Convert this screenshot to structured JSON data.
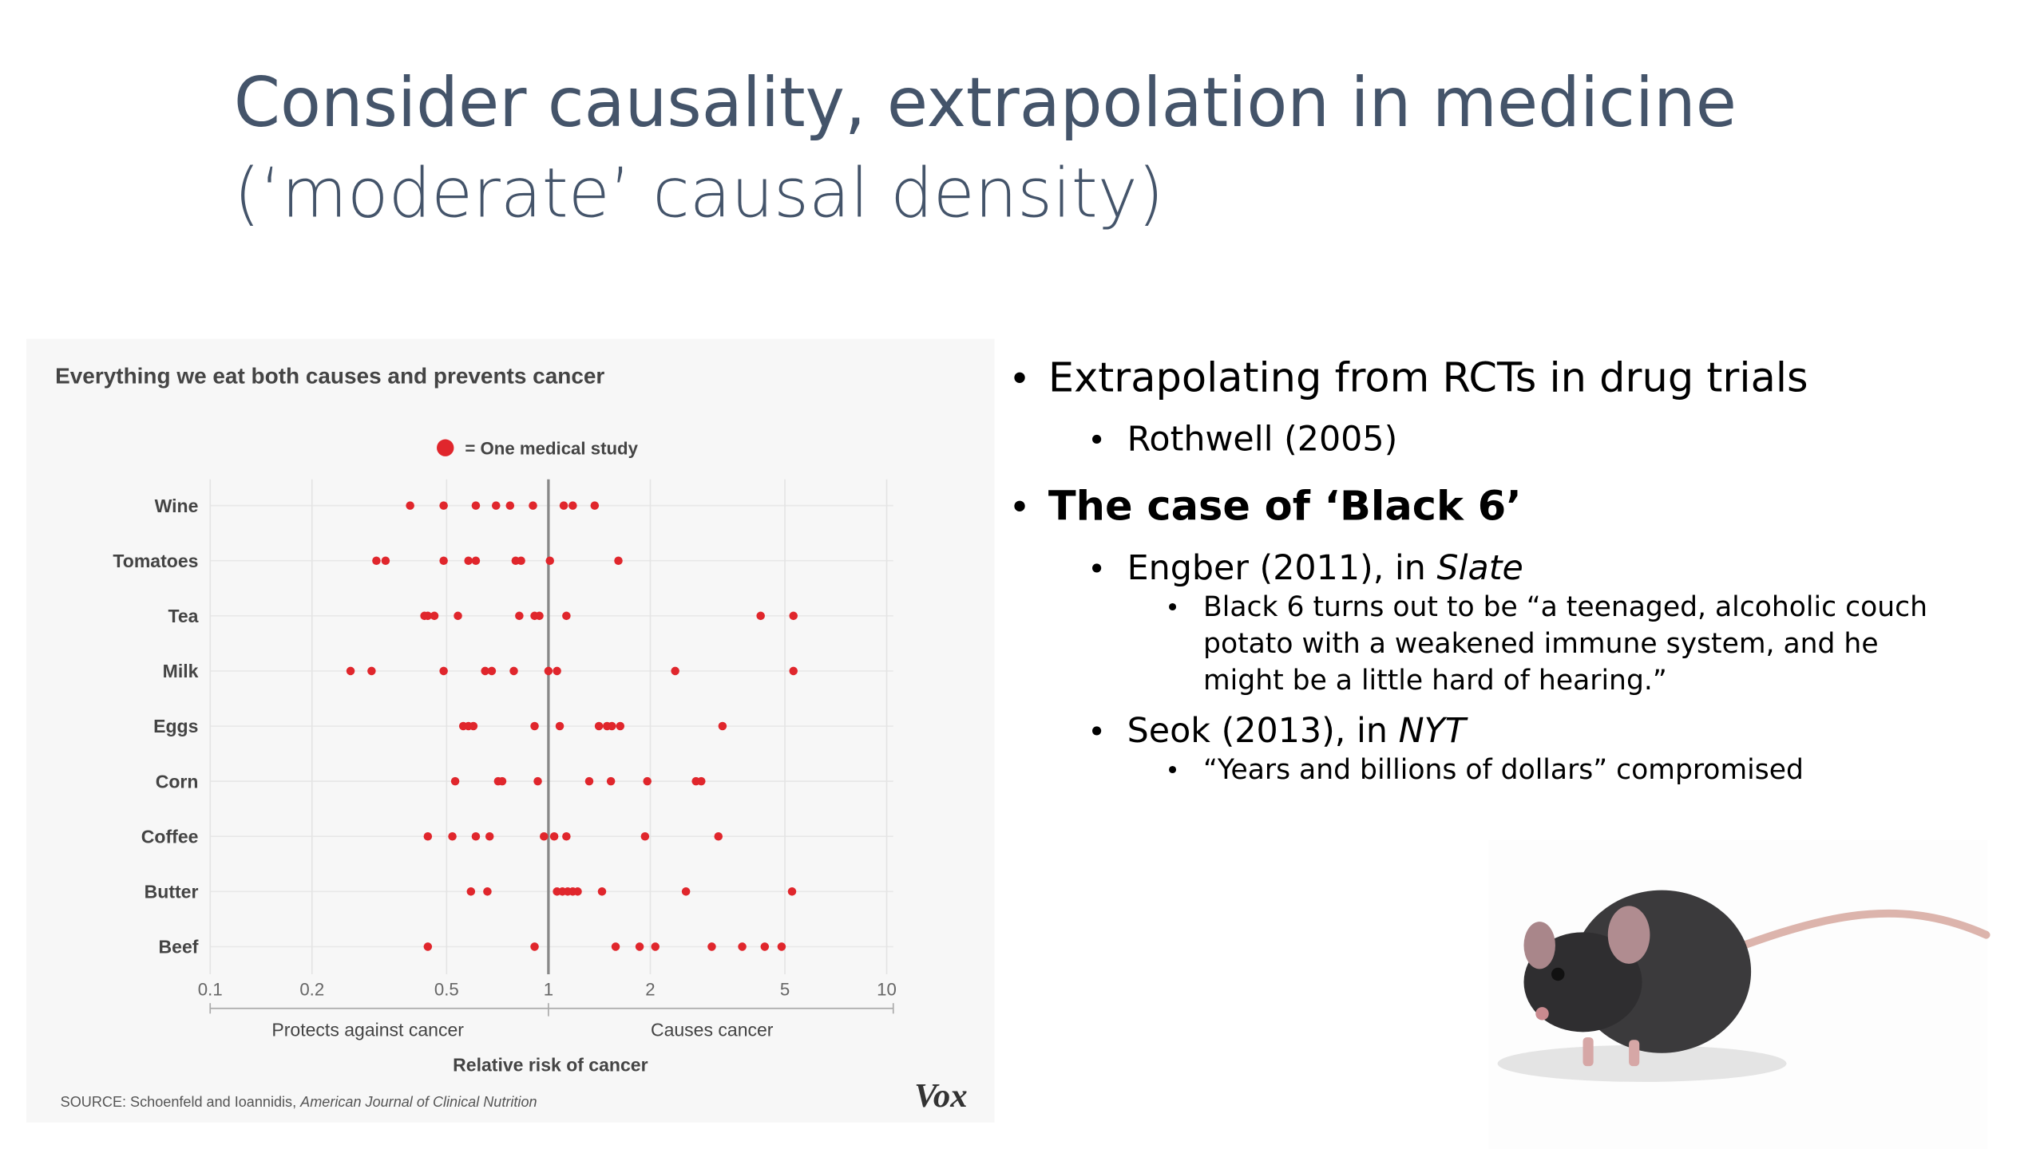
{
  "header": {
    "title": "Consider causality, extrapolation in medicine",
    "subtitle": "(‘moderate’ causal density)"
  },
  "chart_data": {
    "type": "dotplot",
    "title": "Everything we eat both causes and prevents cancer",
    "legend": "= One medical study",
    "color": "#e0262c",
    "categories": [
      "Wine",
      "Tomatoes",
      "Tea",
      "Milk",
      "Eggs",
      "Corn",
      "Coffee",
      "Butter",
      "Beef"
    ],
    "values": [
      [
        0.39,
        0.49,
        0.61,
        0.7,
        0.77,
        0.9,
        1.11,
        1.18,
        1.37
      ],
      [
        0.31,
        0.33,
        0.49,
        0.58,
        0.61,
        0.8,
        0.83,
        1.01,
        1.61
      ],
      [
        0.43,
        0.44,
        0.46,
        0.54,
        0.82,
        0.91,
        0.94,
        1.13,
        4.24,
        5.3
      ],
      [
        0.26,
        0.3,
        0.49,
        0.65,
        0.68,
        0.79,
        1.0,
        1.06,
        2.37,
        5.3
      ],
      [
        0.56,
        0.58,
        0.6,
        0.91,
        1.08,
        1.41,
        1.49,
        1.54,
        1.63,
        3.27
      ],
      [
        0.53,
        0.71,
        0.73,
        0.93,
        1.32,
        1.53,
        1.96,
        2.73,
        2.83
      ],
      [
        0.44,
        0.52,
        0.61,
        0.67,
        0.97,
        1.04,
        1.13,
        1.93,
        3.18
      ],
      [
        0.59,
        0.66,
        1.06,
        1.1,
        1.14,
        1.18,
        1.22,
        1.44,
        2.55,
        5.25
      ],
      [
        0.44,
        0.91,
        1.58,
        1.86,
        2.07,
        3.04,
        3.74,
        4.36,
        4.89
      ]
    ],
    "xlim": [
      0.1,
      10
    ],
    "xticks": [
      0.1,
      0.2,
      0.5,
      1,
      2,
      5,
      10
    ],
    "xscale": "log",
    "reference_line": 1,
    "left_label": "Protects against cancer",
    "right_label": "Causes cancer",
    "xlabel": "Relative risk of cancer",
    "source": {
      "text": "SOURCE: Schoenfeld and Ioannidis, ",
      "emphasis": "American Journal of Clinical Nutrition"
    },
    "logo": "Vox"
  },
  "bullets": [
    {
      "text": "Extrapolating from RCTs in drug trials",
      "children": [
        {
          "text": "Rothwell (2005)"
        }
      ]
    },
    {
      "text": "The case of ‘Black 6’",
      "bold": true,
      "children": [
        {
          "text": "Engber (2011), in ",
          "emphasis": "Slate",
          "children": [
            {
              "lines": [
                "Black 6 turns out to be “a teenaged, alcoholic couch",
                "potato with a weakened immune system, and he",
                "might be a little hard of hearing.”"
              ]
            }
          ]
        },
        {
          "text": "Seok (2013), in ",
          "emphasis": "NYT",
          "children": [
            {
              "lines": [
                "“Years and billions of dollars” compromised"
              ]
            }
          ]
        }
      ]
    }
  ]
}
